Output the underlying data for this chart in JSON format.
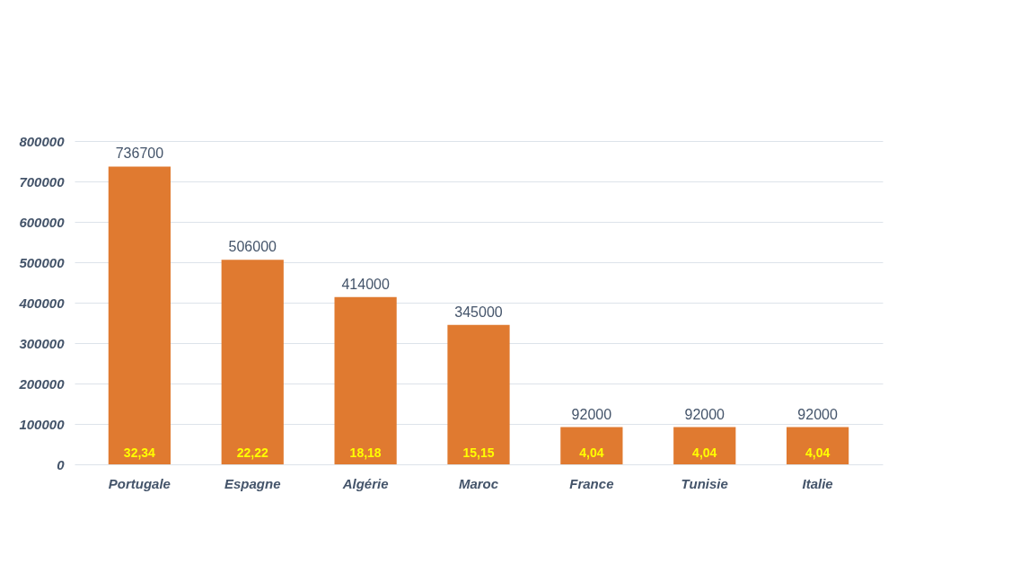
{
  "chart_data": {
    "type": "bar",
    "categories": [
      "Portugale",
      "Espagne",
      "Algérie",
      "Maroc",
      "France",
      "Tunisie",
      "Italie"
    ],
    "values": [
      736700,
      506000,
      414000,
      345000,
      92000,
      92000,
      92000
    ],
    "color": "#e07a30",
    "ylim": [
      0,
      800000
    ],
    "yticks": [
      0,
      100000,
      200000,
      300000,
      400000,
      500000,
      600000,
      700000,
      800000
    ],
    "grid": "y",
    "data_labels": true,
    "annotations": [
      "32,34",
      "22,22",
      "18,18",
      "15,15",
      "4,04",
      "4,04",
      "4,04"
    ]
  }
}
